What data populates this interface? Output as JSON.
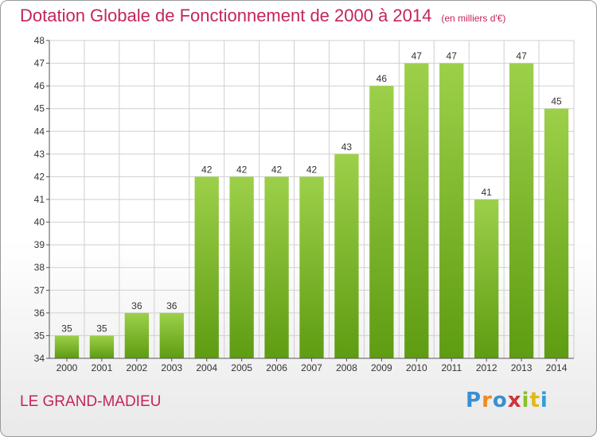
{
  "header": {
    "title": "Dotation Globale de Fonctionnement de 2000 à 2014",
    "unit": "(en milliers d'€)"
  },
  "footer": {
    "commune": "LE GRAND-MADIEU",
    "logo_letters": [
      "P",
      "r",
      "o",
      "x",
      "i",
      "t",
      "i"
    ]
  },
  "colors": {
    "bar_light": "#9dd04a",
    "bar_dark": "#5e9c12",
    "title": "#c4245e",
    "grid": "#cfcfcf"
  },
  "chart_data": {
    "type": "bar",
    "categories": [
      "2000",
      "2001",
      "2002",
      "2003",
      "2004",
      "2005",
      "2006",
      "2007",
      "2008",
      "2009",
      "2010",
      "2011",
      "2012",
      "2013",
      "2014"
    ],
    "values": [
      35,
      35,
      36,
      36,
      42,
      42,
      42,
      42,
      43,
      46,
      47,
      47,
      41,
      47,
      45
    ],
    "ylim": [
      34,
      48
    ],
    "yticks": [
      34,
      35,
      36,
      37,
      38,
      39,
      40,
      41,
      42,
      43,
      44,
      45,
      46,
      47,
      48
    ],
    "grid": true,
    "legend": "none"
  }
}
